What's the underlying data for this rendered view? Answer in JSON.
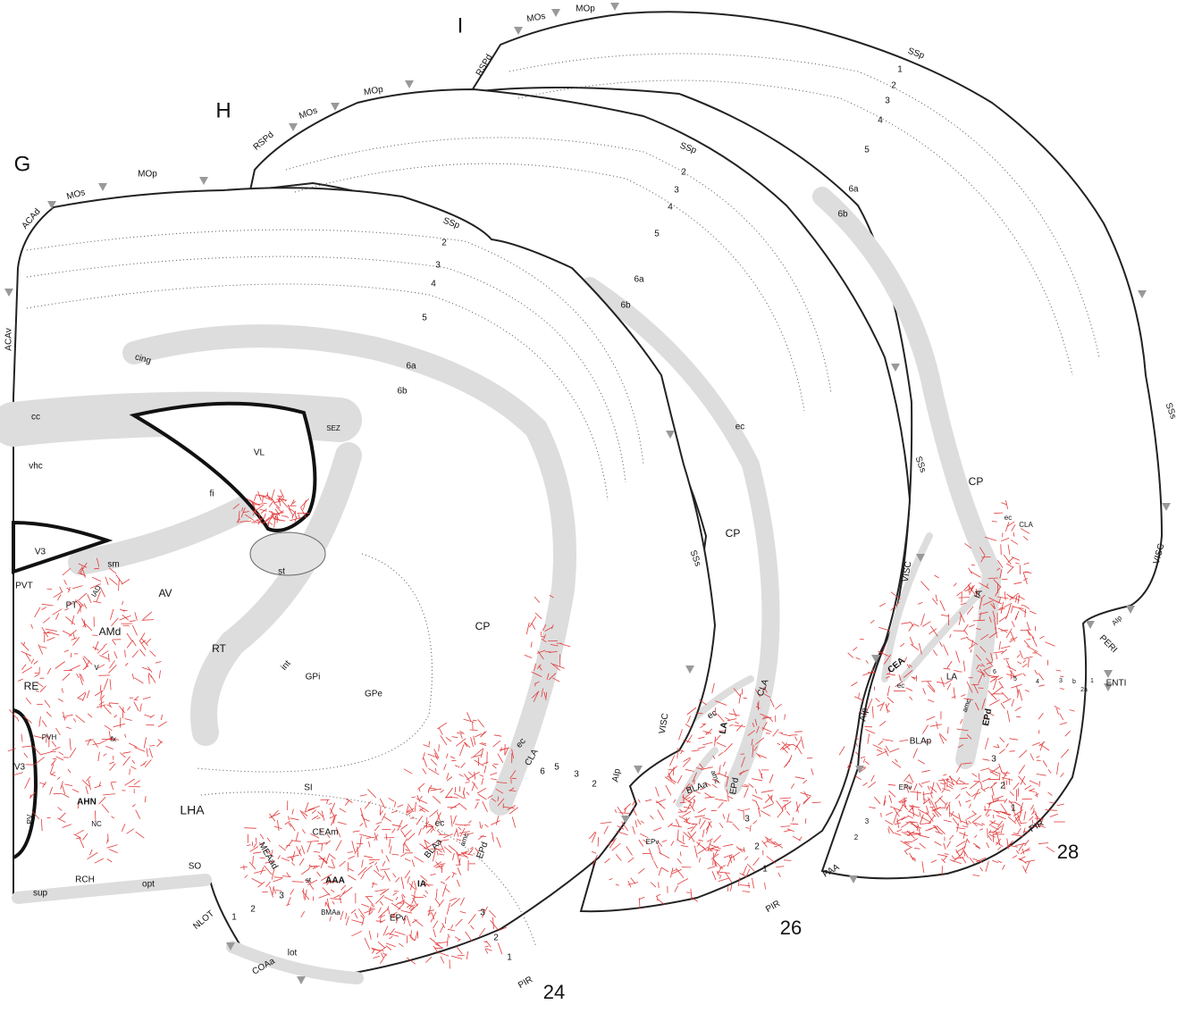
{
  "panels": [
    {
      "letter": "G",
      "section": "24",
      "labels": [
        "ACAd",
        "MOs",
        "MOp",
        "ACAv",
        "SSp",
        "2",
        "3",
        "4",
        "5",
        "6a",
        "6b",
        "cing",
        "cc",
        "vhc",
        "VL",
        "SEZ",
        "fi",
        "st",
        "V3",
        "sm",
        "PVT",
        "PT",
        "IAD",
        "AV",
        "AMd",
        "RT",
        "RE",
        "V",
        "int",
        "GPi",
        "GPe",
        "CP",
        "PVH",
        "V3",
        "fx",
        "AHN",
        "NC",
        "PV",
        "LHA",
        "SI",
        "CEAm",
        "MEAad",
        "ec",
        "BLAa",
        "amc",
        "EPd",
        "AAA",
        "st",
        "IA",
        "BMAa",
        "EPv",
        "3",
        "2",
        "1",
        "SO",
        "RCH",
        "opt",
        "sup",
        "NLOT",
        "COAa",
        "lot",
        "3",
        "2",
        "1",
        "PIR",
        "ec",
        "CLA",
        "6",
        "5",
        "3",
        "2",
        "AIp"
      ]
    },
    {
      "letter": "H",
      "section": "26",
      "labels": [
        "RSPd",
        "MOs",
        "MOp",
        "SSp",
        "2",
        "3",
        "4",
        "5",
        "6a",
        "6b",
        "ec",
        "CP",
        "SSs",
        "VISC",
        "CLA",
        "ec",
        "LA",
        "BLAa",
        "amc",
        "EPd",
        "EPv",
        "3",
        "2",
        "1",
        "PIR"
      ]
    },
    {
      "letter": "I",
      "section": "28",
      "labels": [
        "RSPd",
        "MOs",
        "MOp",
        "SSp",
        "1",
        "2",
        "3",
        "4",
        "5",
        "6a",
        "6b",
        "SSs",
        "CP",
        "ec",
        "CLA",
        "VISC",
        "IA",
        "CEA",
        "ec",
        "LA",
        "AIp",
        "amc",
        "EPd",
        "BLAp",
        "3",
        "EPv",
        "2",
        "1",
        "3",
        "2",
        "PIR",
        "PAA",
        "VISC",
        "AIp",
        "PERI",
        "ENTI",
        "SSs",
        "6",
        "5",
        "4",
        "3",
        "b",
        "1",
        "2a"
      ]
    }
  ]
}
